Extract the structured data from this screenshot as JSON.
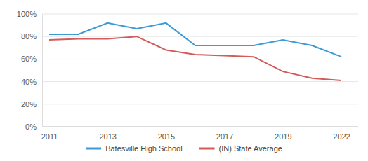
{
  "chart_data": {
    "type": "line",
    "categories": [
      "2011",
      null,
      "2013",
      null,
      "2015",
      null,
      "2017",
      null,
      "2019",
      null,
      "2022"
    ],
    "series": [
      {
        "name": "Batesville High School",
        "color": "#3c9ad4",
        "values": [
          82,
          82,
          92,
          87,
          92,
          72,
          72,
          72,
          77,
          72,
          62
        ]
      },
      {
        "name": "(IN) State Average",
        "color": "#d35b5b",
        "values": [
          77,
          78,
          78,
          80,
          68,
          64,
          63,
          62,
          49,
          43,
          41
        ]
      }
    ],
    "ylim": [
      0,
      100
    ],
    "yticks": [
      {
        "value": 0,
        "label": "0%"
      },
      {
        "value": 20,
        "label": "20%"
      },
      {
        "value": 40,
        "label": "40%"
      },
      {
        "value": 60,
        "label": "60%"
      },
      {
        "value": 80,
        "label": "80%"
      },
      {
        "value": 100,
        "label": "100%"
      }
    ],
    "grid": true,
    "legend": "bottom"
  }
}
